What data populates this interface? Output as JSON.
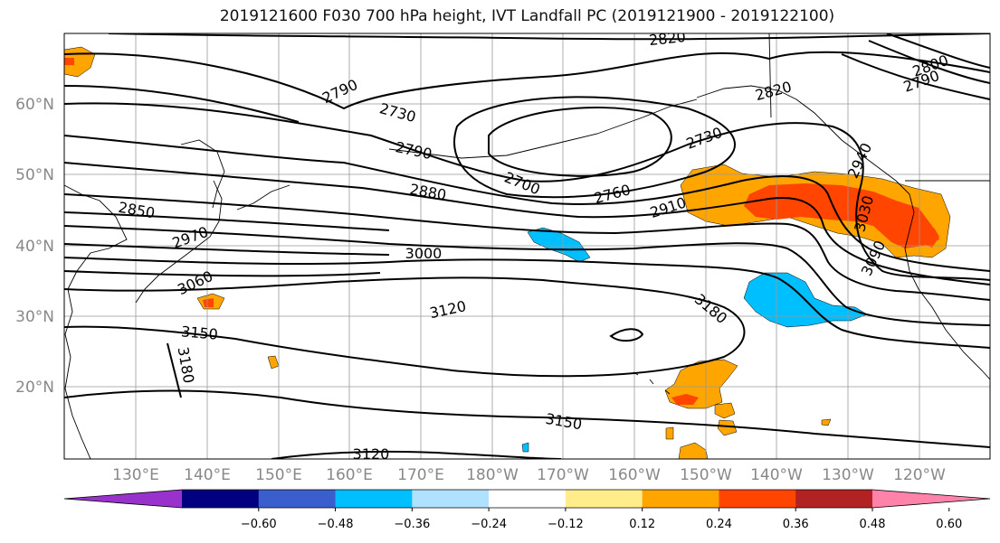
{
  "title": "2019121600 F030 700 hPa height, IVT Landfall PC (2019121900 - 2019122100)",
  "lat_labels": [
    "60°N",
    "50°N",
    "40°N",
    "30°N",
    "20°N"
  ],
  "lon_labels": [
    "130°E",
    "140°E",
    "150°E",
    "160°E",
    "170°E",
    "180°W",
    "170°W",
    "160°W",
    "150°W",
    "140°W",
    "130°W",
    "120°W"
  ],
  "contour_labels": [
    "2820",
    "2800",
    "2790",
    "2790",
    "2730",
    "2820",
    "2790",
    "2730",
    "2940",
    "2700",
    "2880",
    "2760",
    "2910",
    "3030",
    "2850",
    "2970",
    "3000",
    "3060",
    "3090",
    "3120",
    "3180",
    "3150",
    "3180",
    "3150",
    "3120"
  ],
  "colorbar": {
    "ticks": [
      "−0.60",
      "−0.48",
      "−0.36",
      "−0.24",
      "−0.12",
      "0.12",
      "0.24",
      "0.36",
      "0.48",
      "0.60"
    ],
    "colors": [
      "#9932CC",
      "#000080",
      "#3A5FCD",
      "#00BFFF",
      "#B0E2FF",
      "#FFFFFF",
      "#FFEC8B",
      "#FFA500",
      "#FF4500",
      "#B22222",
      "#FF82AB"
    ]
  },
  "anomaly_colors": {
    "positive_low": "#FFA500",
    "positive_high": "#FF4500",
    "positive_faint": "#FFEC8B",
    "negative": "#00BFFF",
    "negative_faint": "#B0E2FF"
  }
}
